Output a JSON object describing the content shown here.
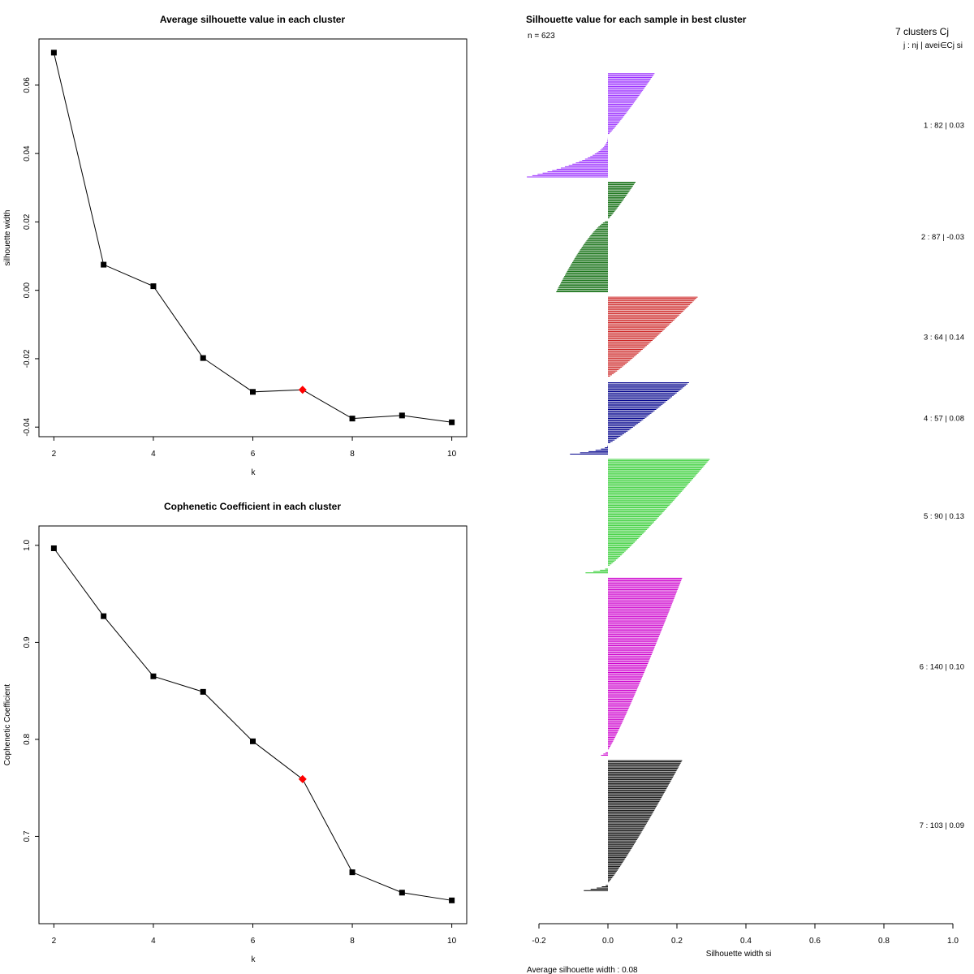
{
  "chart_data": [
    {
      "type": "line",
      "title": "Average silhouette value in each cluster",
      "xlabel": "k",
      "ylabel": "silhouette width",
      "x": [
        2,
        3,
        4,
        5,
        6,
        7,
        8,
        9,
        10
      ],
      "values": [
        0.0695,
        0.0075,
        0.0012,
        -0.0198,
        -0.0297,
        -0.0291,
        -0.0375,
        -0.0366,
        -0.0386
      ],
      "highlight_x": 7,
      "highlight_color": "#ff0000",
      "point_color": "#000000",
      "xlim": [
        1.7,
        10.3
      ],
      "ylim": [
        -0.0428,
        0.0735
      ],
      "xticks": [
        2,
        4,
        6,
        8,
        10
      ],
      "xtick_labels": [
        "2",
        "4",
        "6",
        "8",
        "10"
      ],
      "yticks": [
        -0.04,
        -0.02,
        0.0,
        0.02,
        0.04,
        0.06
      ],
      "ytick_labels": [
        "-0.04",
        "-0.02",
        "0.00",
        "0.02",
        "0.04",
        "0.06"
      ]
    },
    {
      "type": "line",
      "title": "Cophenetic Coefficient in each cluster",
      "xlabel": "k",
      "ylabel": "Cophenetic Coefficient",
      "x": [
        2,
        3,
        4,
        5,
        6,
        7,
        8,
        9,
        10
      ],
      "values": [
        0.997,
        0.927,
        0.865,
        0.849,
        0.798,
        0.759,
        0.663,
        0.642,
        0.634
      ],
      "highlight_x": 7,
      "highlight_color": "#ff0000",
      "point_color": "#000000",
      "xlim": [
        1.7,
        10.3
      ],
      "ylim": [
        0.61,
        1.02
      ],
      "xticks": [
        2,
        4,
        6,
        8,
        10
      ],
      "xtick_labels": [
        "2",
        "4",
        "6",
        "8",
        "10"
      ],
      "yticks": [
        0.7,
        0.8,
        0.9,
        1.0
      ],
      "ytick_labels": [
        "0.7",
        "0.8",
        "0.9",
        "1.0"
      ]
    },
    {
      "type": "bar",
      "orientation": "horizontal",
      "title": "Silhouette value for each sample in best cluster",
      "n_label": "n = 623",
      "header": "7 clusters  Cj",
      "subheader": "j :  nj | avei∈Cj  si",
      "xlabel": "Silhouette width si",
      "footer": "Average silhouette width :  0.08",
      "xlim": [
        -0.2,
        1.0
      ],
      "xticks": [
        -0.2,
        0.0,
        0.2,
        0.4,
        0.6,
        0.8,
        1.0
      ],
      "xtick_labels": [
        "-0.2",
        "0.0",
        "0.2",
        "0.4",
        "0.6",
        "0.8",
        "1.0"
      ],
      "clusters": [
        {
          "id": 1,
          "n": 82,
          "avg": 0.03,
          "label": "1 :   82  |  0.03",
          "color": "#9b30ff",
          "max": 0.135,
          "min": -0.235,
          "pos_frac": 0.6,
          "neg_shape": 2.2
        },
        {
          "id": 2,
          "n": 87,
          "avg": -0.03,
          "label": "2 :   87  |  -0.03",
          "color": "#006400",
          "max": 0.08,
          "min": -0.15,
          "pos_frac": 0.35,
          "neg_shape": 0.7
        },
        {
          "id": 3,
          "n": 64,
          "avg": 0.14,
          "label": "3 :   64  |  0.14",
          "color": "#cd2626",
          "max": 0.26,
          "min": 0.0,
          "pos_frac": 1.0,
          "neg_shape": 1.0
        },
        {
          "id": 4,
          "n": 57,
          "avg": 0.08,
          "label": "4 :   57  |  0.08",
          "color": "#00008b",
          "max": 0.235,
          "min": -0.11,
          "pos_frac": 0.86,
          "neg_shape": 2.0
        },
        {
          "id": 5,
          "n": 90,
          "avg": 0.13,
          "label": "5 :   90  |  0.13",
          "color": "#32cd32",
          "max": 0.295,
          "min": -0.065,
          "pos_frac": 0.94,
          "neg_shape": 1.5
        },
        {
          "id": 6,
          "n": 140,
          "avg": 0.1,
          "label": "6 :  140  |  0.10",
          "color": "#cd00cd",
          "max": 0.215,
          "min": -0.02,
          "pos_frac": 0.97,
          "neg_shape": 1.0
        },
        {
          "id": 7,
          "n": 103,
          "avg": 0.09,
          "label": "7 :  103  |  0.09",
          "color": "#000000",
          "max": 0.215,
          "min": -0.07,
          "pos_frac": 0.94,
          "neg_shape": 1.5
        }
      ]
    }
  ]
}
